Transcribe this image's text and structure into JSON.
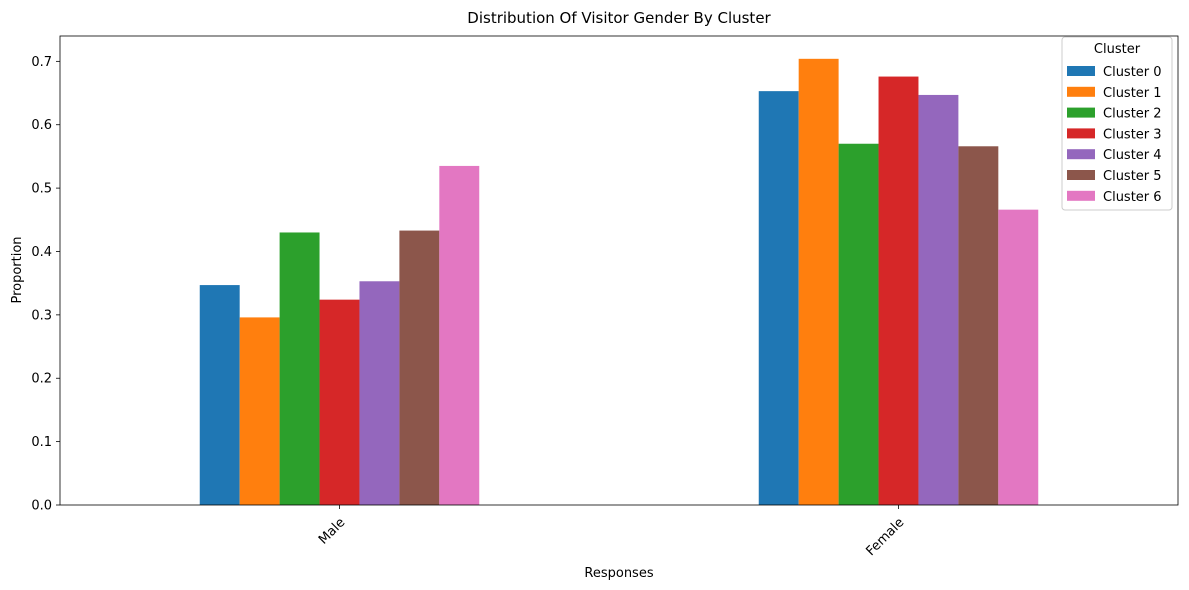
{
  "chart_data": {
    "type": "bar",
    "title": "Distribution Of Visitor Gender By Cluster",
    "xlabel": "Responses",
    "ylabel": "Proportion",
    "categories": [
      "Male",
      "Female"
    ],
    "ylim": [
      0,
      0.74
    ],
    "yticks": [
      "0.0",
      "0.1",
      "0.2",
      "0.3",
      "0.4",
      "0.5",
      "0.6",
      "0.7"
    ],
    "ytick_values": [
      0,
      0.1,
      0.2,
      0.3,
      0.4,
      0.5,
      0.6,
      0.7
    ],
    "legend_title": "Cluster",
    "legend_position": "top-right",
    "grid": false,
    "series": [
      {
        "name": "Cluster 0",
        "color": "#1f77b4",
        "values": [
          0.347,
          0.653
        ]
      },
      {
        "name": "Cluster 1",
        "color": "#ff7f0e",
        "values": [
          0.296,
          0.704
        ]
      },
      {
        "name": "Cluster 2",
        "color": "#2ca02c",
        "values": [
          0.43,
          0.57
        ]
      },
      {
        "name": "Cluster 3",
        "color": "#d62728",
        "values": [
          0.324,
          0.676
        ]
      },
      {
        "name": "Cluster 4",
        "color": "#9467bd",
        "values": [
          0.353,
          0.647
        ]
      },
      {
        "name": "Cluster 5",
        "color": "#8c564b",
        "values": [
          0.433,
          0.566
        ]
      },
      {
        "name": "Cluster 6",
        "color": "#e377c2",
        "values": [
          0.535,
          0.466
        ]
      }
    ]
  }
}
